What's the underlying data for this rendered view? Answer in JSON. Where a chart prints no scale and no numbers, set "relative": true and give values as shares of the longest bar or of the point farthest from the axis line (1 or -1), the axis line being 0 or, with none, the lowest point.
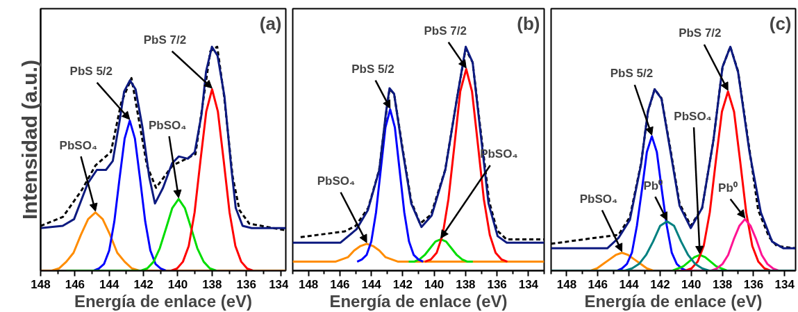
{
  "chart_data": [
    {
      "type": "line",
      "relative": true,
      "title": "(a)",
      "xlabel": "Energía de enlace (eV)",
      "ylabel": "Intensidad (a.u.)",
      "xlim": [
        148,
        133.7
      ],
      "xticks": [
        148,
        146,
        144,
        142,
        140,
        138,
        136,
        134
      ],
      "annotations": [
        {
          "text": "PbSO₄",
          "x": 144.8,
          "y": 0.26
        },
        {
          "text": "PbS 5/2",
          "x": 142.8,
          "y": 0.67
        },
        {
          "text": "PbSO₄",
          "x": 139.95,
          "y": 0.32
        },
        {
          "text": "PbS 7/2",
          "x": 138.0,
          "y": 0.81
        }
      ],
      "series": [
        {
          "color": "#ff8c00",
          "x": [
            148,
            147.35,
            146.93,
            146.5,
            146.08,
            145.65,
            145.23,
            144.8,
            144.38,
            143.95,
            143.53,
            143.1,
            142.68,
            142.25,
            133.7
          ],
          "values": [
            0,
            0,
            0.01,
            0.04,
            0.08,
            0.16,
            0.23,
            0.26,
            0.23,
            0.16,
            0.08,
            0.04,
            0.01,
            0,
            0
          ]
        },
        {
          "color": "#0000ff",
          "x": [
            144.9,
            144.6,
            144.3,
            144.0,
            143.7,
            143.4,
            143.1,
            142.8,
            142.5,
            142.2,
            141.9,
            141.6,
            141.3,
            141.0,
            140.7
          ],
          "values": [
            0,
            0.01,
            0.03,
            0.09,
            0.22,
            0.41,
            0.59,
            0.67,
            0.59,
            0.41,
            0.22,
            0.09,
            0.03,
            0.01,
            0
          ]
        },
        {
          "color": "#00dd00",
          "x": [
            146.5,
            142.14,
            141.78,
            141.41,
            141.05,
            140.68,
            140.32,
            139.95,
            139.59,
            139.22,
            138.86,
            138.49,
            138.13,
            137.76
          ],
          "values": [
            0,
            0,
            0.01,
            0.04,
            0.1,
            0.19,
            0.28,
            0.32,
            0.28,
            0.19,
            0.1,
            0.04,
            0.01,
            0
          ]
        },
        {
          "color": "#ff0000",
          "x": [
            140.38,
            140.04,
            139.7,
            139.36,
            139.02,
            138.68,
            138.34,
            138.0,
            137.66,
            137.32,
            136.98,
            136.64,
            136.3,
            135.96,
            135.62
          ],
          "values": [
            0,
            0.01,
            0.04,
            0.11,
            0.26,
            0.49,
            0.71,
            0.81,
            0.71,
            0.49,
            0.26,
            0.11,
            0.04,
            0.01,
            0
          ]
        },
        {
          "color": "#000000",
          "line_style": "dashed",
          "x": [
            148,
            146.7,
            145.6,
            144.8,
            143.9,
            143.3,
            142.7,
            141.8,
            141.27,
            140.3,
            138.97,
            138.1,
            137.7,
            137.3,
            136.8,
            136.4,
            135.83,
            133.7
          ],
          "values": [
            0.2,
            0.24,
            0.36,
            0.47,
            0.53,
            0.75,
            0.86,
            0.47,
            0.37,
            0.47,
            0.52,
            0.98,
            1.0,
            0.78,
            0.42,
            0.27,
            0.21,
            0.18
          ]
        },
        {
          "color": "#0d1a80",
          "x": [
            148,
            146.71,
            146.05,
            145.25,
            144.72,
            144.19,
            143.79,
            143.39,
            143.13,
            142.79,
            142.46,
            142.06,
            141.67,
            141.33,
            140.86,
            140.33,
            139.94,
            139.41,
            139.01,
            138.61,
            138.35,
            138.01,
            137.68,
            137.28,
            136.88,
            136.62,
            136.22,
            135.69,
            133.7
          ],
          "values": [
            0.19,
            0.2,
            0.23,
            0.39,
            0.45,
            0.45,
            0.49,
            0.67,
            0.8,
            0.85,
            0.81,
            0.64,
            0.42,
            0.3,
            0.37,
            0.48,
            0.51,
            0.5,
            0.53,
            0.7,
            0.89,
            1.0,
            0.96,
            0.78,
            0.46,
            0.28,
            0.2,
            0.19,
            0.19
          ]
        }
      ]
    },
    {
      "type": "line",
      "relative": true,
      "title": "(b)",
      "xlabel": "Energía de enlace (eV)",
      "xlim": [
        149,
        133
      ],
      "xticks": [
        148,
        146,
        144,
        142,
        140,
        138,
        136,
        134
      ],
      "annotations": [
        {
          "text": "PbSO₄",
          "x": 144.29,
          "y": 0.12
        },
        {
          "text": "PbS 5/2",
          "x": 142.8,
          "y": 0.72
        },
        {
          "text": "PbSO₄",
          "x": 139.58,
          "y": 0.14
        },
        {
          "text": "PbS 7/2",
          "x": 137.96,
          "y": 0.9
        }
      ],
      "series": [
        {
          "color": "#ff8c00",
          "x": [
            149,
            146.69,
            146.29,
            145.89,
            145.49,
            145.09,
            144.69,
            144.29,
            143.89,
            143.49,
            143.09,
            142.69,
            142.29,
            141.89,
            133
          ],
          "values": [
            0.04,
            0.04,
            0.04,
            0.05,
            0.06,
            0.09,
            0.11,
            0.12,
            0.11,
            0.09,
            0.06,
            0.05,
            0.04,
            0.04,
            0.04
          ]
        },
        {
          "color": "#00dd00",
          "x": [
            141.62,
            141.28,
            140.94,
            140.6,
            140.26,
            139.92,
            139.58,
            139.24,
            138.9,
            138.56,
            138.22,
            137.88,
            137.54
          ],
          "values": [
            0.04,
            0.04,
            0.05,
            0.07,
            0.1,
            0.13,
            0.14,
            0.13,
            0.1,
            0.07,
            0.05,
            0.04,
            0.04
          ]
        },
        {
          "color": "#0000ff",
          "x": [
            144.9,
            144.6,
            144.3,
            144.0,
            143.7,
            143.4,
            143.1,
            142.8,
            142.5,
            142.2,
            141.9,
            141.6,
            141.3,
            141.0,
            140.7
          ],
          "values": [
            0.04,
            0.05,
            0.07,
            0.13,
            0.26,
            0.45,
            0.64,
            0.72,
            0.64,
            0.45,
            0.26,
            0.13,
            0.07,
            0.05,
            0.04
          ]
        },
        {
          "color": "#ff0000",
          "x": [
            140.59,
            140.21,
            139.84,
            139.46,
            139.09,
            138.71,
            138.34,
            137.96,
            137.59,
            137.21,
            136.84,
            136.46,
            136.09,
            135.71,
            135.34
          ],
          "values": [
            0.04,
            0.05,
            0.08,
            0.16,
            0.32,
            0.56,
            0.8,
            0.9,
            0.8,
            0.56,
            0.32,
            0.16,
            0.08,
            0.05,
            0.04
          ]
        },
        {
          "color": "#000000",
          "line_style": "dashed",
          "x": [
            148.5,
            145.7,
            145.0,
            144.2,
            143.5,
            143.06,
            142.84,
            142.55,
            142.04,
            141.46,
            140.9,
            140.2,
            139.3,
            138.57,
            138.0,
            137.55,
            137.1,
            136.5,
            136.0,
            135.4,
            133
          ],
          "values": [
            0.15,
            0.175,
            0.2,
            0.28,
            0.45,
            0.7,
            0.81,
            0.79,
            0.56,
            0.31,
            0.21,
            0.25,
            0.45,
            0.76,
            0.99,
            0.93,
            0.66,
            0.31,
            0.18,
            0.14,
            0.14
          ]
        },
        {
          "color": "#0d1a80",
          "x": [
            149,
            145.96,
            144.94,
            144.22,
            143.49,
            143.06,
            142.84,
            142.55,
            142.04,
            141.46,
            140.81,
            140.16,
            139.29,
            138.57,
            137.99,
            137.55,
            137.12,
            136.54,
            135.96,
            135.38,
            133
          ],
          "values": [
            0.125,
            0.125,
            0.185,
            0.27,
            0.45,
            0.71,
            0.815,
            0.79,
            0.55,
            0.3,
            0.195,
            0.246,
            0.45,
            0.76,
            1.0,
            0.93,
            0.66,
            0.3,
            0.154,
            0.125,
            0.125
          ]
        }
      ]
    },
    {
      "type": "line",
      "relative": true,
      "title": "(c)",
      "xlabel": "Energía de enlace (eV)",
      "xlim": [
        149,
        133.3
      ],
      "xticks": [
        148,
        146,
        144,
        142,
        140,
        138,
        136,
        134
      ],
      "annotations": [
        {
          "text": "PbSO₄",
          "x": 144.45,
          "y": 0.08
        },
        {
          "text": "PbS 5/2",
          "x": 142.53,
          "y": 0.6
        },
        {
          "text": "Pb⁰",
          "x": 141.55,
          "y": 0.22
        },
        {
          "text": "PbSO₄",
          "x": 139.45,
          "y": 0.07
        },
        {
          "text": "PbS 7/2",
          "x": 137.64,
          "y": 0.8
        },
        {
          "text": "Pb⁰",
          "x": 136.55,
          "y": 0.23
        }
      ],
      "series": [
        {
          "color": "#ff8c00",
          "x": [
            146.45,
            146.05,
            145.65,
            145.25,
            144.85,
            144.45,
            144.05,
            143.65,
            143.25,
            142.85,
            142.45
          ],
          "values": [
            0,
            0.01,
            0.03,
            0.05,
            0.07,
            0.08,
            0.07,
            0.05,
            0.03,
            0.01,
            0
          ]
        },
        {
          "color": "#0000ff",
          "x": [
            144.77,
            144.45,
            144.13,
            143.81,
            143.49,
            143.17,
            142.85,
            142.53,
            142.21,
            141.89,
            141.57,
            141.25,
            140.93,
            140.61,
            140.29
          ],
          "values": [
            0,
            0.01,
            0.03,
            0.08,
            0.2,
            0.36,
            0.53,
            0.6,
            0.53,
            0.36,
            0.2,
            0.08,
            0.03,
            0.01,
            0
          ]
        },
        {
          "color": "#00dd00",
          "x": [
            141.2,
            140.85,
            140.5,
            140.15,
            139.8,
            139.45,
            139.1,
            138.75,
            138.4,
            138.05,
            137.7
          ],
          "values": [
            0,
            0.01,
            0.02,
            0.04,
            0.06,
            0.07,
            0.06,
            0.04,
            0.02,
            0.01,
            0
          ]
        },
        {
          "color": "#ff0000",
          "x": [
            140.37,
            139.98,
            139.59,
            139.2,
            138.81,
            138.42,
            138.03,
            137.64,
            137.25,
            136.86,
            136.47,
            136.08,
            135.69,
            135.3,
            134.91
          ],
          "values": [
            0,
            0.01,
            0.04,
            0.11,
            0.26,
            0.49,
            0.71,
            0.8,
            0.71,
            0.49,
            0.26,
            0.11,
            0.04,
            0.01,
            0
          ]
        },
        {
          "color": "#ff1493",
          "x": [
            141,
            138.71,
            138.35,
            137.99,
            137.63,
            137.27,
            136.91,
            136.55,
            136.19,
            135.83,
            135.47,
            135.11,
            134.75,
            134.39,
            133.3
          ],
          "values": [
            0,
            0,
            0.01,
            0.03,
            0.07,
            0.14,
            0.2,
            0.23,
            0.2,
            0.14,
            0.07,
            0.03,
            0.01,
            0,
            0
          ]
        },
        {
          "color": "#008080",
          "x": [
            149,
            144.25,
            143.8,
            143.35,
            142.9,
            142.45,
            142.0,
            141.55,
            141.1,
            140.65,
            140.2,
            139.75,
            139.3,
            138.85,
            133.3
          ],
          "values": [
            0,
            0,
            0.01,
            0.03,
            0.07,
            0.13,
            0.2,
            0.22,
            0.2,
            0.13,
            0.07,
            0.03,
            0.01,
            0,
            0
          ]
        },
        {
          "color": "#000000",
          "line_style": "dashed",
          "x": [
            149,
            145.8,
            144.67,
            143.94,
            143.22,
            142.78,
            142.35,
            141.91,
            141.33,
            140.75,
            140.03,
            139.3,
            138.58,
            137.99,
            137.49,
            136.99,
            136.3,
            135.7,
            135.0,
            134.5,
            133.3
          ],
          "values": [
            0.12,
            0.15,
            0.16,
            0.24,
            0.48,
            0.71,
            0.81,
            0.77,
            0.54,
            0.3,
            0.2,
            0.28,
            0.58,
            0.91,
            1.0,
            0.89,
            0.56,
            0.27,
            0.15,
            0.11,
            0.1
          ]
        },
        {
          "color": "#0d1a80",
          "x": [
            149,
            145.39,
            144.67,
            143.94,
            143.22,
            142.78,
            142.35,
            141.91,
            141.33,
            140.75,
            140.03,
            139.3,
            138.58,
            137.99,
            137.49,
            136.99,
            136.26,
            135.53,
            134.81,
            134.09,
            133.3
          ],
          "values": [
            0.1,
            0.1,
            0.146,
            0.227,
            0.476,
            0.713,
            0.81,
            0.768,
            0.53,
            0.29,
            0.19,
            0.28,
            0.58,
            0.91,
            1.0,
            0.886,
            0.53,
            0.26,
            0.13,
            0.1,
            0.1
          ]
        }
      ]
    }
  ]
}
